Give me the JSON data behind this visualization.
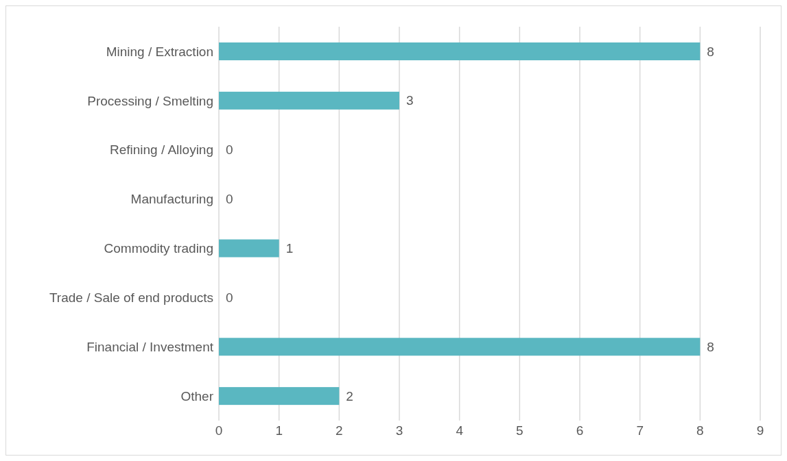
{
  "chart_data": {
    "type": "bar",
    "orientation": "horizontal",
    "categories": [
      "Mining / Extraction",
      "Processing / Smelting",
      "Refining / Alloying",
      "Manufacturing",
      "Commodity trading",
      "Trade / Sale of end products",
      "Financial / Investment",
      "Other"
    ],
    "values": [
      8,
      3,
      0,
      0,
      1,
      0,
      8,
      2
    ],
    "color": "#5ab7c1",
    "xlim": [
      0,
      9
    ],
    "xticks": [
      0,
      1,
      2,
      3,
      4,
      5,
      6,
      7,
      8,
      9
    ],
    "grid": "x",
    "data_labels": true
  }
}
